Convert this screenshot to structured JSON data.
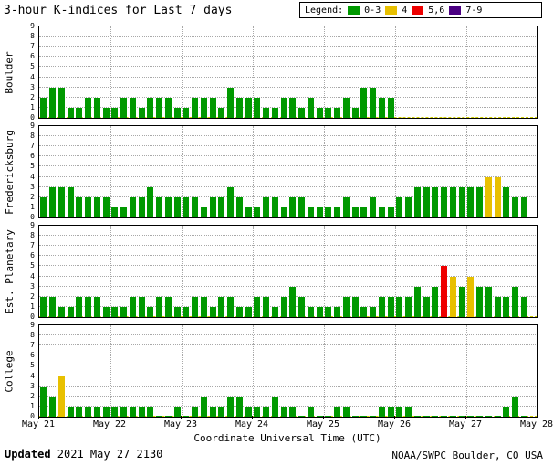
{
  "title": "3-hour K-indices for Last 7 days",
  "legend": {
    "label": "Legend:",
    "items": [
      {
        "label": "0-3",
        "color": "#009900"
      },
      {
        "label": "4",
        "color": "#e8c000"
      },
      {
        "label": "5,6",
        "color": "#ee0000"
      },
      {
        "label": "7-9",
        "color": "#4b0082"
      }
    ]
  },
  "footer": {
    "updated_label": "Updated",
    "updated_value": " 2021 May 27 2130",
    "credit": "NOAA/SWPC Boulder, CO USA"
  },
  "chart_data": {
    "type": "bar",
    "title": "3-hour K-indices for Last 7 days",
    "xlabel": "Coordinate Universal Time (UTC)",
    "ylim": [
      0,
      9
    ],
    "x_labels": [
      "May 21",
      "May 22",
      "May 23",
      "May 24",
      "May 25",
      "May 26",
      "May 27",
      "May 28"
    ],
    "bars_per_day": 8,
    "grid": true,
    "colors": {
      "green": "#009900",
      "yellow": "#e8c000",
      "red": "#ee0000",
      "purple": "#4b0082",
      "baseline": "#cfcf00",
      "grid": "#a8a8a8"
    },
    "color_rule": "0-3 green, 4 yellow, 5-6 red, 7-9 purple, null = no data",
    "panels": [
      {
        "station": "Boulder",
        "values": [
          2,
          3,
          3,
          1,
          1,
          2,
          2,
          1,
          1,
          2,
          2,
          1,
          2,
          2,
          2,
          1,
          1,
          2,
          2,
          2,
          1,
          3,
          2,
          2,
          2,
          1,
          1,
          2,
          2,
          1,
          2,
          1,
          1,
          1,
          2,
          1,
          3,
          3,
          2,
          2,
          null,
          null,
          null,
          null,
          null,
          null,
          null,
          null,
          null,
          null,
          null,
          null,
          null,
          null,
          null,
          null
        ]
      },
      {
        "station": "Fredericksburg",
        "values": [
          2,
          3,
          3,
          3,
          2,
          2,
          2,
          2,
          1,
          1,
          2,
          2,
          3,
          2,
          2,
          2,
          2,
          2,
          1,
          2,
          2,
          3,
          2,
          1,
          1,
          2,
          2,
          1,
          2,
          2,
          1,
          1,
          1,
          1,
          2,
          1,
          1,
          2,
          1,
          1,
          2,
          2,
          3,
          3,
          3,
          3,
          3,
          3,
          3,
          3,
          4,
          4,
          3,
          2,
          2,
          null
        ]
      },
      {
        "station": "Est. Planetary",
        "values": [
          2,
          2,
          1,
          1,
          2,
          2,
          2,
          1,
          1,
          1,
          2,
          2,
          1,
          2,
          2,
          1,
          1,
          2,
          2,
          1,
          2,
          2,
          1,
          1,
          2,
          2,
          1,
          2,
          3,
          2,
          1,
          1,
          1,
          1,
          2,
          2,
          1,
          1,
          2,
          2,
          2,
          2,
          3,
          2,
          3,
          5,
          4,
          3,
          4,
          3,
          3,
          2,
          2,
          3,
          2,
          null
        ]
      },
      {
        "station": "College",
        "values": [
          3,
          2,
          4,
          1,
          1,
          1,
          1,
          1,
          1,
          1,
          1,
          1,
          1,
          0,
          0,
          1,
          0,
          1,
          2,
          1,
          1,
          2,
          2,
          1,
          1,
          1,
          2,
          1,
          1,
          0,
          1,
          0,
          0,
          1,
          1,
          0,
          0,
          0,
          1,
          1,
          1,
          1,
          0,
          0,
          0,
          0,
          0,
          0,
          0,
          0,
          0,
          0,
          1,
          2,
          0,
          null
        ]
      }
    ]
  }
}
